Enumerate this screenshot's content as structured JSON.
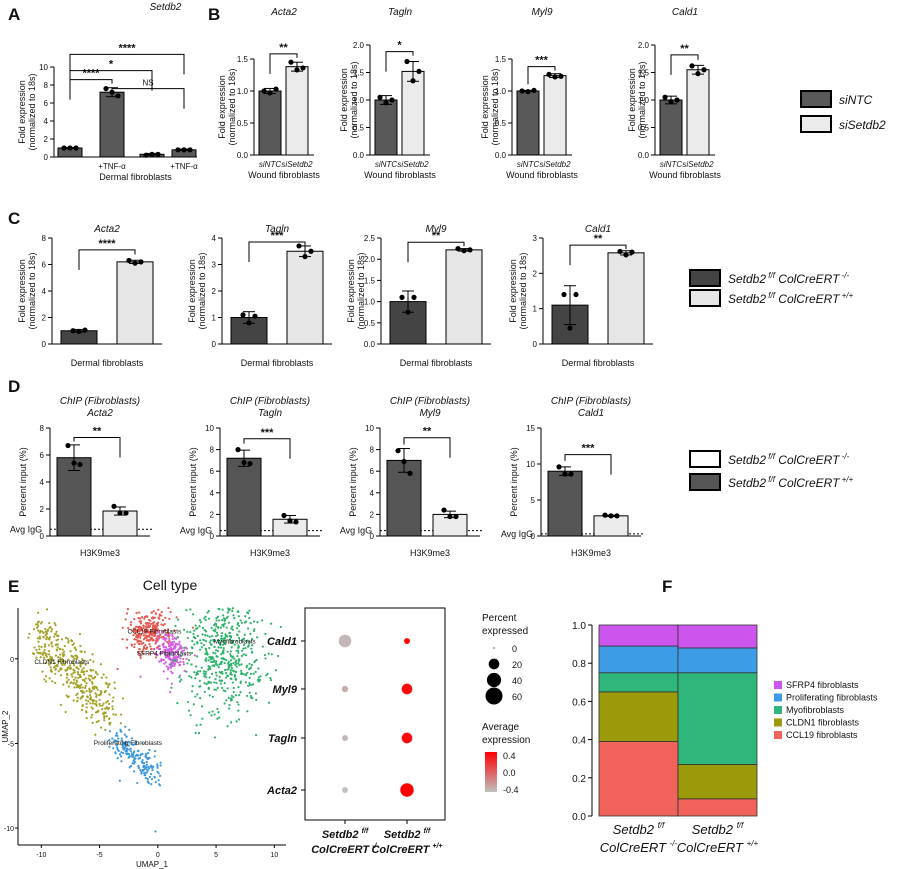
{
  "panels": [
    {
      "letter": "A"
    },
    {
      "letter": "B"
    },
    {
      "letter": "C"
    },
    {
      "letter": "D"
    },
    {
      "letter": "E"
    },
    {
      "letter": "F"
    }
  ],
  "legend_B": {
    "items": [
      {
        "label": "siNTC",
        "color": "#595959"
      },
      {
        "label": "siSetdb2",
        "color": "#ebebeb"
      }
    ]
  },
  "legend_C": {
    "items": [
      {
        "label_main": "Setdb2",
        "label_sup1": "f/f",
        "label_mid": " ColCreERT",
        "label_sup2": "-/-",
        "color": "#444444"
      },
      {
        "label_main": "Setdb2",
        "label_sup1": "f/f",
        "label_mid": " ColCreERT",
        "label_sup2": "+/+",
        "color": "#e6e6e6"
      }
    ]
  },
  "legend_D": {
    "items": [
      {
        "label_main": "Setdb2",
        "label_sup1": "f/f",
        "label_mid": " ColCreERT",
        "label_sup2": "-/-",
        "color": "#ffffff"
      },
      {
        "label_main": "Setdb2",
        "label_sup1": "f/f",
        "label_mid": " ColCreERT",
        "label_sup2": "+/+",
        "color": "#555555"
      }
    ]
  },
  "chart_data": [
    {
      "id": "A1",
      "type": "bar",
      "title": "Setdb2",
      "ylabel": "Fold expression\n(normalized to 18s)",
      "xlabel": "Dermal fibroblasts",
      "ylim": [
        0,
        10
      ],
      "yticks": [
        0,
        2,
        4,
        6,
        8,
        10
      ],
      "categories": [
        "",
        "+TNF-α",
        "",
        "+TNF-α"
      ],
      "values": [
        1.0,
        7.2,
        0.3,
        0.8
      ],
      "points": [
        [
          1.0,
          1.0,
          1.0
        ],
        [
          7.6,
          7.2,
          6.8
        ],
        [
          0.2,
          0.3,
          0.3
        ],
        [
          0.8,
          0.8,
          0.8
        ]
      ],
      "err": [
        0.05,
        0.5,
        0.1,
        0.08
      ],
      "colors": [
        "#595959",
        "#595959",
        "#595959",
        "#595959"
      ],
      "sig": [
        {
          "a": 0,
          "b": 1,
          "label": "****",
          "y": 8.6
        },
        {
          "a": 0,
          "b": 2,
          "label": "*",
          "y": 9.6
        },
        {
          "a": 1,
          "b": 3,
          "label": "NS",
          "y": 7.6
        },
        {
          "a": 0,
          "b": 3,
          "label": "****",
          "y": 11.4
        }
      ]
    },
    {
      "id": "B1",
      "type": "bar",
      "title": "Acta2",
      "ylabel": "Fold expression\n(normalized to 18s)",
      "xlabel": "Wound fibroblasts",
      "ylim": [
        0,
        1.5
      ],
      "yticks": [
        0.0,
        0.5,
        1.0,
        1.5
      ],
      "categories": [
        "siNTC",
        "siSetdb2"
      ],
      "values": [
        1.0,
        1.38
      ],
      "points": [
        [
          1.0,
          0.97,
          1.03
        ],
        [
          1.45,
          1.33,
          1.36
        ]
      ],
      "err": [
        0.04,
        0.07
      ],
      "colors": [
        "#595959",
        "#ebebeb"
      ],
      "sig": [
        {
          "a": 0,
          "b": 1,
          "label": "**",
          "y": 1.58
        }
      ]
    },
    {
      "id": "B2",
      "type": "bar",
      "title": "Tagln",
      "ylabel": "Fold expression\n(normalized to 18s)",
      "xlabel": "Wound fibroblasts",
      "ylim": [
        0,
        2.0
      ],
      "yticks": [
        0.0,
        0.5,
        1.0,
        1.5,
        2.0
      ],
      "categories": [
        "siNTC",
        "siSetdb2"
      ],
      "values": [
        1.0,
        1.52
      ],
      "points": [
        [
          1.05,
          0.95,
          1.0
        ],
        [
          1.7,
          1.35,
          1.52
        ]
      ],
      "err": [
        0.08,
        0.18
      ],
      "colors": [
        "#595959",
        "#ebebeb"
      ],
      "sig": [
        {
          "a": 0,
          "b": 1,
          "label": "*",
          "y": 1.88
        }
      ]
    },
    {
      "id": "B3",
      "type": "bar",
      "title": "Myl9",
      "ylabel": "Fold expression\n(normalized to 18s)",
      "xlabel": "Wound fibroblasts",
      "ylim": [
        0,
        1.5
      ],
      "yticks": [
        0.0,
        0.5,
        1.0,
        1.5
      ],
      "categories": [
        "siNTC",
        "siSetdb2"
      ],
      "values": [
        1.0,
        1.24
      ],
      "points": [
        [
          1.0,
          0.99,
          1.01
        ],
        [
          1.26,
          1.22,
          1.23
        ]
      ],
      "err": [
        0.01,
        0.03
      ],
      "colors": [
        "#595959",
        "#ebebeb"
      ],
      "sig": [
        {
          "a": 0,
          "b": 1,
          "label": "***",
          "y": 1.38
        }
      ]
    },
    {
      "id": "B4",
      "type": "bar",
      "title": "Cald1",
      "ylabel": "Fold expression\n(normalized to 18s)",
      "xlabel": "Wound fibroblasts",
      "ylim": [
        0,
        2.0
      ],
      "yticks": [
        0.0,
        0.5,
        1.0,
        1.5,
        2.0
      ],
      "categories": [
        "siNTC",
        "siSetdb2"
      ],
      "values": [
        1.0,
        1.55
      ],
      "points": [
        [
          1.05,
          0.97,
          1.0
        ],
        [
          1.62,
          1.48,
          1.55
        ]
      ],
      "err": [
        0.07,
        0.08
      ],
      "colors": [
        "#595959",
        "#ebebeb"
      ],
      "sig": [
        {
          "a": 0,
          "b": 1,
          "label": "**",
          "y": 1.82
        }
      ]
    },
    {
      "id": "C1",
      "type": "bar",
      "title": "Acta2",
      "ylabel": "Fold expression\n(normalized to 18s)",
      "xlabel": "Dermal fibroblasts",
      "ylim": [
        0,
        8
      ],
      "yticks": [
        0,
        2,
        4,
        6,
        8
      ],
      "categories": [
        "",
        ""
      ],
      "values": [
        1.0,
        6.2
      ],
      "points": [
        [
          1.0,
          0.95,
          1.05
        ],
        [
          6.3,
          6.1,
          6.2
        ]
      ],
      "err": [
        0.1,
        0.12
      ],
      "colors": [
        "#444444",
        "#e6e6e6"
      ],
      "sig": [
        {
          "a": 0,
          "b": 1,
          "label": "****",
          "y": 7.1
        }
      ]
    },
    {
      "id": "C2",
      "type": "bar",
      "title": "Tagln",
      "ylabel": "Fold expression\n(normalized to 18s)",
      "xlabel": "Dermal fibroblasts",
      "ylim": [
        0,
        4
      ],
      "yticks": [
        0,
        1,
        2,
        3,
        4
      ],
      "categories": [
        "",
        ""
      ],
      "values": [
        1.0,
        3.5
      ],
      "points": [
        [
          1.1,
          0.8,
          1.05
        ],
        [
          3.7,
          3.3,
          3.5
        ]
      ],
      "err": [
        0.22,
        0.2
      ],
      "colors": [
        "#444444",
        "#e6e6e6"
      ],
      "sig": [
        {
          "a": 0,
          "b": 1,
          "label": "***",
          "y": 3.85
        }
      ]
    },
    {
      "id": "C3",
      "type": "bar",
      "title": "Myl9",
      "ylabel": "Fold expression\n(normalized to 18s)",
      "xlabel": "Dermal fibroblasts",
      "ylim": [
        0,
        2.5
      ],
      "yticks": [
        0.0,
        0.5,
        1.0,
        1.5,
        2.0,
        2.5
      ],
      "categories": [
        "",
        ""
      ],
      "values": [
        1.0,
        2.22
      ],
      "points": [
        [
          1.1,
          0.75,
          1.1
        ],
        [
          2.25,
          2.2,
          2.22
        ]
      ],
      "err": [
        0.25,
        0.03
      ],
      "colors": [
        "#444444",
        "#e6e6e6"
      ],
      "sig": [
        {
          "a": 0,
          "b": 1,
          "label": "**",
          "y": 2.4
        }
      ]
    },
    {
      "id": "C4",
      "type": "bar",
      "title": "Cald1",
      "ylabel": "Fold expression\n(normalized to 18s)",
      "xlabel": "Dermal fibroblasts",
      "ylim": [
        0,
        3
      ],
      "yticks": [
        0,
        1,
        2,
        3
      ],
      "categories": [
        "",
        ""
      ],
      "values": [
        1.1,
        2.58
      ],
      "points": [
        [
          1.4,
          0.45,
          1.4
        ],
        [
          2.62,
          2.52,
          2.6
        ]
      ],
      "err": [
        0.55,
        0.06
      ],
      "colors": [
        "#444444",
        "#e6e6e6"
      ],
      "sig": [
        {
          "a": 0,
          "b": 1,
          "label": "**",
          "y": 2.8
        }
      ]
    },
    {
      "id": "D1",
      "type": "bar",
      "title": "ChIP (Fibroblasts)\nActa2",
      "ylabel": "Percent input (%)",
      "xlabel": "H3K9me3",
      "avg_label": "Avg IgG",
      "avg_y": 0.5,
      "ylim": [
        0,
        8
      ],
      "yticks": [
        0,
        2,
        4,
        6,
        8
      ],
      "categories": [
        "",
        ""
      ],
      "values": [
        5.8,
        1.85
      ],
      "points": [
        [
          6.7,
          5.4,
          5.3
        ],
        [
          2.2,
          1.7,
          1.7
        ]
      ],
      "err": [
        0.95,
        0.3
      ],
      "colors": [
        "#555555",
        "#ececec"
      ],
      "sig": [
        {
          "a": 0,
          "b": 1,
          "label": "**",
          "y": 7.3
        }
      ]
    },
    {
      "id": "D2",
      "type": "bar",
      "title": "ChIP (Fibroblasts)\nTagln",
      "ylabel": "Percent input (%)",
      "xlabel": "H3K9me3",
      "avg_label": "Avg IgG",
      "avg_y": 0.5,
      "ylim": [
        0,
        10
      ],
      "yticks": [
        0,
        2,
        4,
        6,
        8,
        10
      ],
      "categories": [
        "",
        ""
      ],
      "values": [
        7.2,
        1.55
      ],
      "points": [
        [
          8.0,
          6.8,
          6.7
        ],
        [
          1.9,
          1.4,
          1.3
        ]
      ],
      "err": [
        0.75,
        0.35
      ],
      "colors": [
        "#555555",
        "#ececec"
      ],
      "sig": [
        {
          "a": 0,
          "b": 1,
          "label": "***",
          "y": 9.0
        }
      ]
    },
    {
      "id": "D3",
      "type": "bar",
      "title": "ChIP (Fibroblasts)\nMyl9",
      "ylabel": "Percent input (%)",
      "xlabel": "H3K9me3",
      "avg_label": "Avg IgG",
      "avg_y": 0.5,
      "ylim": [
        0,
        10
      ],
      "yticks": [
        0,
        2,
        4,
        6,
        8,
        10
      ],
      "categories": [
        "",
        ""
      ],
      "values": [
        7.0,
        2.0
      ],
      "points": [
        [
          7.9,
          6.9,
          5.8
        ],
        [
          2.4,
          1.8,
          1.8
        ]
      ],
      "err": [
        1.1,
        0.3
      ],
      "colors": [
        "#555555",
        "#ececec"
      ],
      "sig": [
        {
          "a": 0,
          "b": 1,
          "label": "**",
          "y": 9.1
        }
      ]
    },
    {
      "id": "D4",
      "type": "bar",
      "title": "ChIP (Fibroblasts)\nCald1",
      "ylabel": "Percent input (%)",
      "xlabel": "H3K9me3",
      "avg_label": "Avg IgG",
      "avg_y": 0.3,
      "ylim": [
        0,
        15
      ],
      "yticks": [
        0,
        5,
        10,
        15
      ],
      "categories": [
        "",
        ""
      ],
      "values": [
        9.0,
        2.8
      ],
      "points": [
        [
          9.6,
          8.6,
          8.6
        ],
        [
          2.9,
          2.8,
          2.8
        ]
      ],
      "err": [
        0.6,
        0.1
      ],
      "colors": [
        "#555555",
        "#ececec"
      ],
      "sig": [
        {
          "a": 0,
          "b": 1,
          "label": "***",
          "y": 11.3
        }
      ]
    },
    {
      "id": "E_umap",
      "type": "scatter",
      "title": "Cell type",
      "xlabel": "UMAP_1",
      "ylabel": "UMAP_2",
      "xlim": [
        -12,
        11
      ],
      "ylim": [
        -11,
        3
      ],
      "xticks": [
        -10,
        -5,
        0,
        5,
        10
      ],
      "yticks": [
        -10,
        -5,
        0
      ],
      "series": [
        {
          "name": "CCL19 Fibroblasts",
          "color": "#e8574e",
          "center": [
            -0.8,
            1.6
          ],
          "spread": [
            1.4,
            0.9
          ],
          "n": 260,
          "label_at": [
            -2.6,
            1.5
          ]
        },
        {
          "name": "SFRP4 Fibroblasts",
          "color": "#d25fe0",
          "center": [
            1.2,
            0.3
          ],
          "spread": [
            0.9,
            0.8
          ],
          "n": 200,
          "label_at": [
            -1.8,
            0.2
          ]
        },
        {
          "name": "Myofibroblasts",
          "color": "#2eb36a",
          "center": [
            5.6,
            0.2
          ],
          "spread": [
            2.6,
            2.5
          ],
          "n": 520,
          "label_at": [
            4.8,
            0.9
          ]
        },
        {
          "name": "CLDN1 Fibroblasts",
          "color": "#a3a227",
          "center": [
            -8.0,
            -1.0
          ],
          "spread": [
            1.7,
            2.0
          ],
          "n": 420,
          "label_at": [
            -10.6,
            -0.3
          ]
        },
        {
          "name": "Proliferating Fibroblasts",
          "color": "#3b98dd",
          "center": [
            -2.6,
            -5.8
          ],
          "spread": [
            1.0,
            0.8
          ],
          "n": 180,
          "label_at": [
            -5.5,
            -5.1
          ]
        }
      ]
    },
    {
      "id": "E_dot",
      "type": "scatter",
      "subtype": "dotplot",
      "genes": [
        "Cald1",
        "Myl9",
        "Tagln",
        "Acta2"
      ],
      "groups": [
        {
          "label_main": "Setdb2",
          "label_sup1": "f/f",
          "label_line2": "ColCreERT",
          "label_sup2": "-/-"
        },
        {
          "label_main": "Setdb2",
          "label_sup1": "f/f",
          "label_line2": "ColCreERT",
          "label_sup2": "+/+"
        }
      ],
      "percent": [
        [
          30,
          4
        ],
        [
          5,
          20
        ],
        [
          4,
          20
        ],
        [
          4,
          35
        ]
      ],
      "avg_expr": [
        [
          -0.4,
          0.5
        ],
        [
          -0.35,
          0.45
        ],
        [
          -0.4,
          0.45
        ],
        [
          -0.45,
          0.5
        ]
      ],
      "size_legend": {
        "title": "Percent\nexpressed",
        "values": [
          0,
          20,
          40,
          60
        ]
      },
      "color_legend": {
        "title": "Average\nexpression",
        "ticks": [
          0.4,
          0.0,
          -0.4
        ],
        "low": "#c0c0c0",
        "high": "#ff0000"
      }
    },
    {
      "id": "F",
      "type": "bar",
      "subtype": "stacked",
      "groups": [
        {
          "label_main": "Setdb2",
          "label_sup1": "f/f",
          "label_line2": "ColCreERT",
          "label_sup2": "-/-"
        },
        {
          "label_main": "Setdb2",
          "label_sup1": "f/f",
          "label_line2": "ColCreERT",
          "label_sup2": "+/+"
        }
      ],
      "ylim": [
        0,
        1.0
      ],
      "yticks": [
        0.0,
        0.2,
        0.4,
        0.6,
        0.8,
        1.0
      ],
      "series": [
        {
          "name": "CCL19 fibroblasts",
          "color": "#f0625a",
          "values": [
            0.39,
            0.09
          ]
        },
        {
          "name": "CLDN1 fibroblasts",
          "color": "#9a9a0a",
          "values": [
            0.26,
            0.18
          ]
        },
        {
          "name": "Myofibroblasts",
          "color": "#2fb67a",
          "values": [
            0.1,
            0.48
          ]
        },
        {
          "name": "Proliferating fibroblasts",
          "color": "#3d9ce6",
          "values": [
            0.14,
            0.13
          ]
        },
        {
          "name": "SFRP4 fibroblasts",
          "color": "#cc55ee",
          "values": [
            0.11,
            0.12
          ]
        }
      ],
      "legend_order": [
        "SFRP4 fibroblasts",
        "Proliferating fibroblasts",
        "Myofibroblasts",
        "CLDN1 fibroblasts",
        "CCL19 fibroblasts"
      ]
    }
  ]
}
